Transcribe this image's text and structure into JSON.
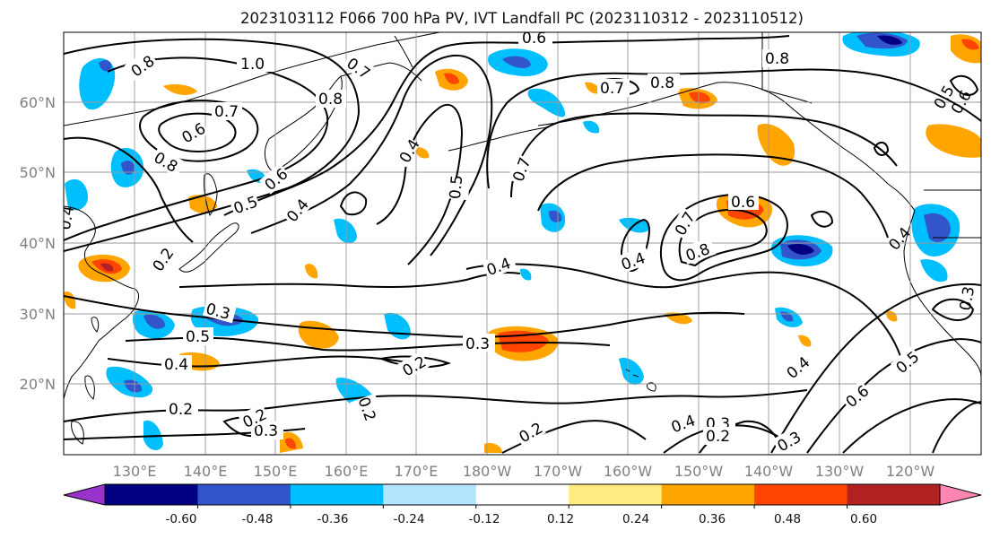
{
  "title": "2023103112 F066 700 hPa PV, IVT Landfall PC (2023110312 - 2023110512)",
  "lat_labels": [
    "60°N",
    "50°N",
    "40°N",
    "30°N",
    "20°N"
  ],
  "lon_labels": [
    "130°E",
    "140°E",
    "150°E",
    "160°E",
    "170°E",
    "180°W",
    "170°W",
    "160°W",
    "150°W",
    "140°W",
    "130°W",
    "120°W"
  ],
  "colorbar": {
    "colors": [
      "#9933cc",
      "#000080",
      "#3355cc",
      "#00bfff",
      "#b3e5ff",
      "#ffffff",
      "#ffeb80",
      "#ffa500",
      "#ff4500",
      "#b22222",
      "#ff85b3"
    ],
    "tick_labels": [
      "-0.60",
      "-0.48",
      "-0.36",
      "-0.24",
      "-0.12",
      "0.12",
      "0.24",
      "0.36",
      "0.48",
      "0.60"
    ]
  },
  "contour_labels": [
    "0.6",
    "0.8",
    "1.0",
    "0.7",
    "0.8",
    "0.6",
    "0.8",
    "0.7",
    "0.8",
    "0.5",
    "0.6",
    "0.4",
    "0.4",
    "0.5",
    "0.7",
    "0.8",
    "0.7",
    "0.6",
    "0.5",
    "0.6",
    "0.4",
    "0.2",
    "0.4",
    "0.4",
    "0.7",
    "0.8",
    "0.4",
    "0.3",
    "0.5",
    "0.4",
    "0.3",
    "0.2",
    "0.2",
    "0.2",
    "0.3",
    "0.2",
    "0.4",
    "0.3",
    "0.2",
    "0.3",
    "0.6",
    "0.5",
    "0.4",
    "0.2",
    "0.3"
  ]
}
